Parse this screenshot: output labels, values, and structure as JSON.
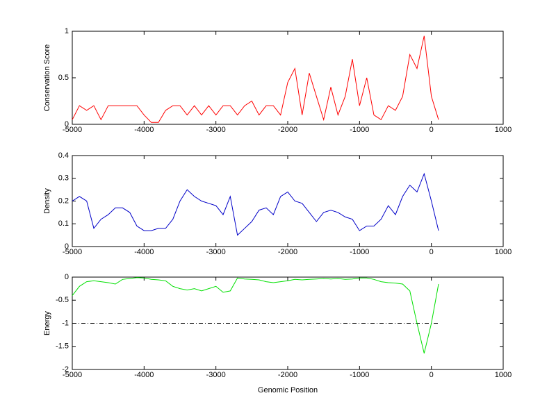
{
  "chart_data": [
    {
      "type": "line",
      "ylabel": "Conservation Score",
      "color": "#ff0000",
      "x": [
        -5000,
        -4900,
        -4800,
        -4700,
        -4600,
        -4500,
        -4400,
        -4300,
        -4200,
        -4100,
        -4000,
        -3900,
        -3800,
        -3700,
        -3600,
        -3500,
        -3400,
        -3300,
        -3200,
        -3100,
        -3000,
        -2900,
        -2800,
        -2700,
        -2600,
        -2500,
        -2400,
        -2300,
        -2200,
        -2100,
        -2000,
        -1900,
        -1800,
        -1700,
        -1600,
        -1500,
        -1400,
        -1300,
        -1200,
        -1100,
        -1000,
        -900,
        -800,
        -700,
        -600,
        -500,
        -400,
        -300,
        -200,
        -100,
        0,
        100
      ],
      "values": [
        0.05,
        0.2,
        0.15,
        0.2,
        0.05,
        0.2,
        0.2,
        0.2,
        0.2,
        0.2,
        0.1,
        0.02,
        0.02,
        0.15,
        0.2,
        0.2,
        0.1,
        0.2,
        0.1,
        0.2,
        0.1,
        0.2,
        0.2,
        0.1,
        0.2,
        0.25,
        0.1,
        0.2,
        0.2,
        0.1,
        0.45,
        0.6,
        0.1,
        0.55,
        0.3,
        0.05,
        0.4,
        0.1,
        0.3,
        0.7,
        0.2,
        0.5,
        0.1,
        0.05,
        0.2,
        0.15,
        0.3,
        0.75,
        0.6,
        0.95,
        0.3,
        0.05
      ],
      "xlim": [
        -5000,
        1000
      ],
      "ylim": [
        0,
        1
      ],
      "xticks": [
        -5000,
        -4000,
        -3000,
        -2000,
        -1000,
        0,
        1000
      ],
      "yticks": [
        0,
        0.5,
        1
      ]
    },
    {
      "type": "line",
      "ylabel": "Density",
      "color": "#0000c8",
      "x": [
        -5000,
        -4900,
        -4800,
        -4700,
        -4600,
        -4500,
        -4400,
        -4300,
        -4200,
        -4100,
        -4000,
        -3900,
        -3800,
        -3700,
        -3600,
        -3500,
        -3400,
        -3300,
        -3200,
        -3100,
        -3000,
        -2900,
        -2800,
        -2700,
        -2600,
        -2500,
        -2400,
        -2300,
        -2200,
        -2100,
        -2000,
        -1900,
        -1800,
        -1700,
        -1600,
        -1500,
        -1400,
        -1300,
        -1200,
        -1100,
        -1000,
        -900,
        -800,
        -700,
        -600,
        -500,
        -400,
        -300,
        -200,
        -100,
        0,
        100
      ],
      "values": [
        0.2,
        0.22,
        0.2,
        0.08,
        0.12,
        0.14,
        0.17,
        0.17,
        0.15,
        0.09,
        0.07,
        0.07,
        0.08,
        0.08,
        0.12,
        0.2,
        0.25,
        0.22,
        0.2,
        0.19,
        0.18,
        0.14,
        0.22,
        0.05,
        0.08,
        0.11,
        0.16,
        0.17,
        0.14,
        0.22,
        0.24,
        0.2,
        0.19,
        0.15,
        0.11,
        0.15,
        0.16,
        0.15,
        0.13,
        0.12,
        0.07,
        0.09,
        0.09,
        0.12,
        0.18,
        0.14,
        0.22,
        0.27,
        0.24,
        0.32,
        0.2,
        0.07
      ],
      "xlim": [
        -5000,
        1000
      ],
      "ylim": [
        0,
        0.4
      ],
      "xticks": [
        -5000,
        -4000,
        -3000,
        -2000,
        -1000,
        0,
        1000
      ],
      "yticks": [
        0,
        0.1,
        0.2,
        0.3,
        0.4
      ]
    },
    {
      "type": "line",
      "ylabel": "Energy",
      "xlabel": "Genomic Position",
      "color": "#00e000",
      "x": [
        -5000,
        -4900,
        -4800,
        -4700,
        -4600,
        -4500,
        -4400,
        -4300,
        -4200,
        -4100,
        -4000,
        -3900,
        -3800,
        -3700,
        -3600,
        -3500,
        -3400,
        -3300,
        -3200,
        -3100,
        -3000,
        -2900,
        -2800,
        -2700,
        -2600,
        -2500,
        -2400,
        -2300,
        -2200,
        -2100,
        -2000,
        -1900,
        -1800,
        -1700,
        -1600,
        -1500,
        -1400,
        -1300,
        -1200,
        -1100,
        -1000,
        -900,
        -800,
        -700,
        -600,
        -500,
        -400,
        -300,
        -200,
        -100,
        0,
        100
      ],
      "values": [
        -0.4,
        -0.2,
        -0.1,
        -0.08,
        -0.1,
        -0.12,
        -0.15,
        -0.05,
        -0.03,
        -0.01,
        -0.02,
        -0.05,
        -0.06,
        -0.08,
        -0.2,
        -0.25,
        -0.28,
        -0.25,
        -0.3,
        -0.25,
        -0.2,
        -0.33,
        -0.3,
        -0.02,
        -0.04,
        -0.05,
        -0.06,
        -0.1,
        -0.12,
        -0.1,
        -0.08,
        -0.05,
        -0.06,
        -0.05,
        -0.04,
        -0.03,
        -0.04,
        -0.03,
        -0.05,
        -0.04,
        -0.02,
        -0.02,
        -0.05,
        -0.1,
        -0.12,
        -0.13,
        -0.15,
        -0.3,
        -1.0,
        -1.65,
        -1.0,
        -0.15
      ],
      "reference_line": {
        "y": -1,
        "x_start": -5000,
        "x_end": 100
      },
      "xlim": [
        -5000,
        1000
      ],
      "ylim": [
        -2,
        0
      ],
      "xticks": [
        -5000,
        -4000,
        -3000,
        -2000,
        -1000,
        0,
        1000
      ],
      "yticks": [
        -2,
        -1.5,
        -1,
        -0.5,
        0
      ]
    }
  ]
}
